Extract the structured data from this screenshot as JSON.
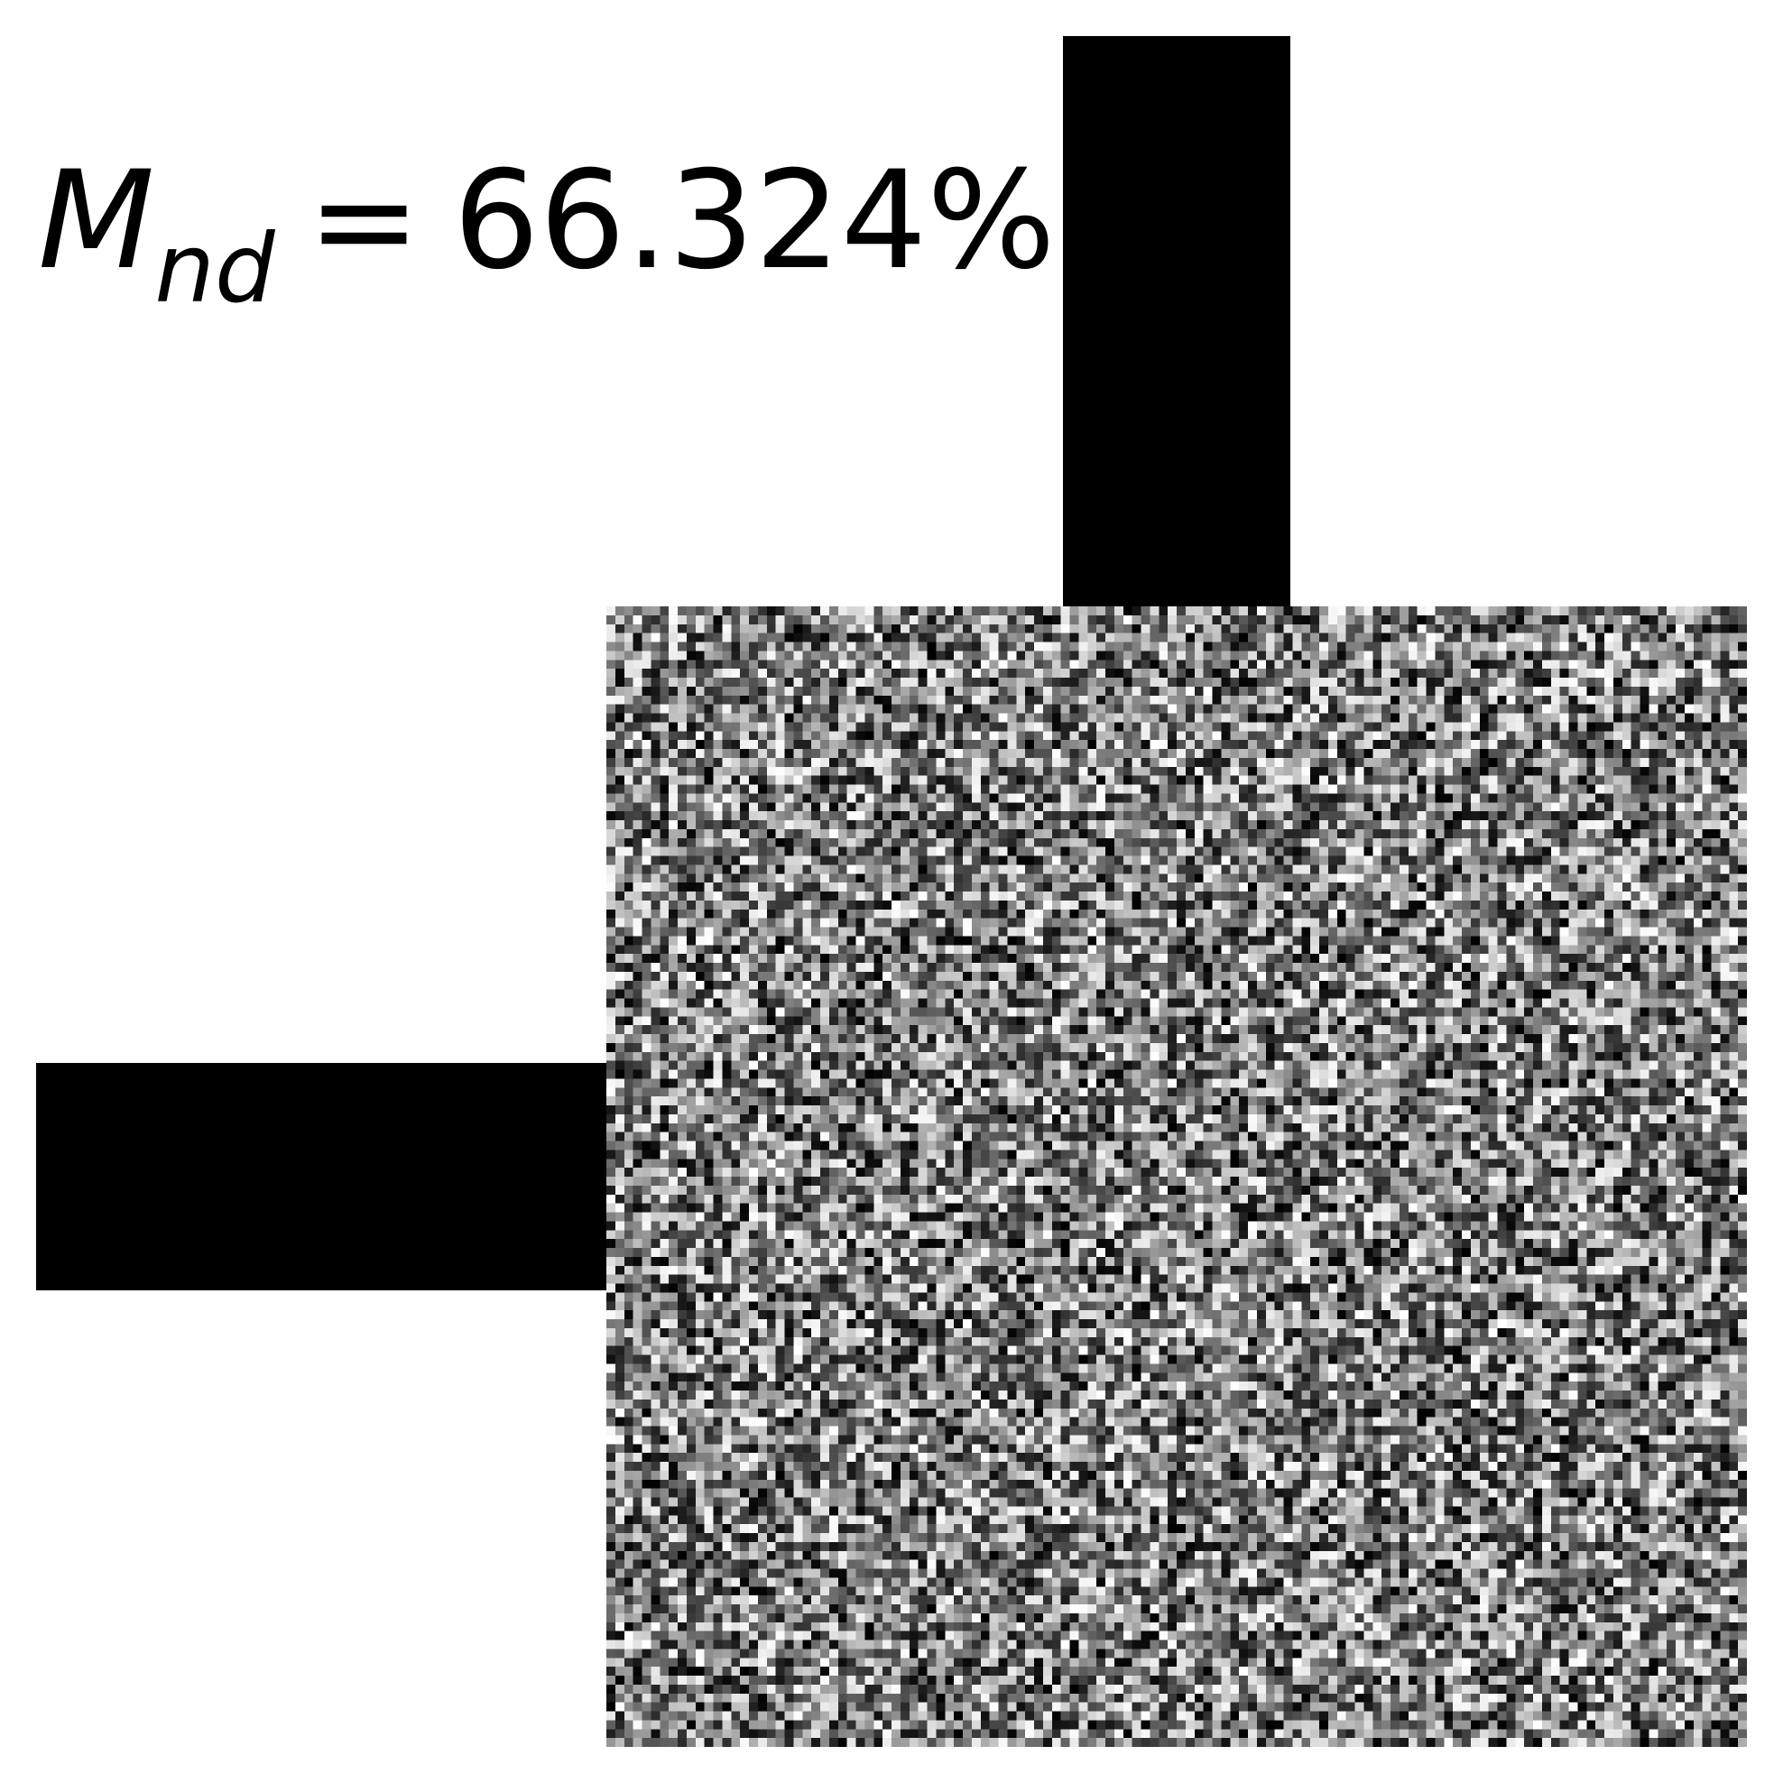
{
  "metric": {
    "symbol": "M",
    "subscript": "nd",
    "operator": "=",
    "value": "66.324%"
  },
  "colors": {
    "background": "#ffffff",
    "bars": "#000000"
  }
}
